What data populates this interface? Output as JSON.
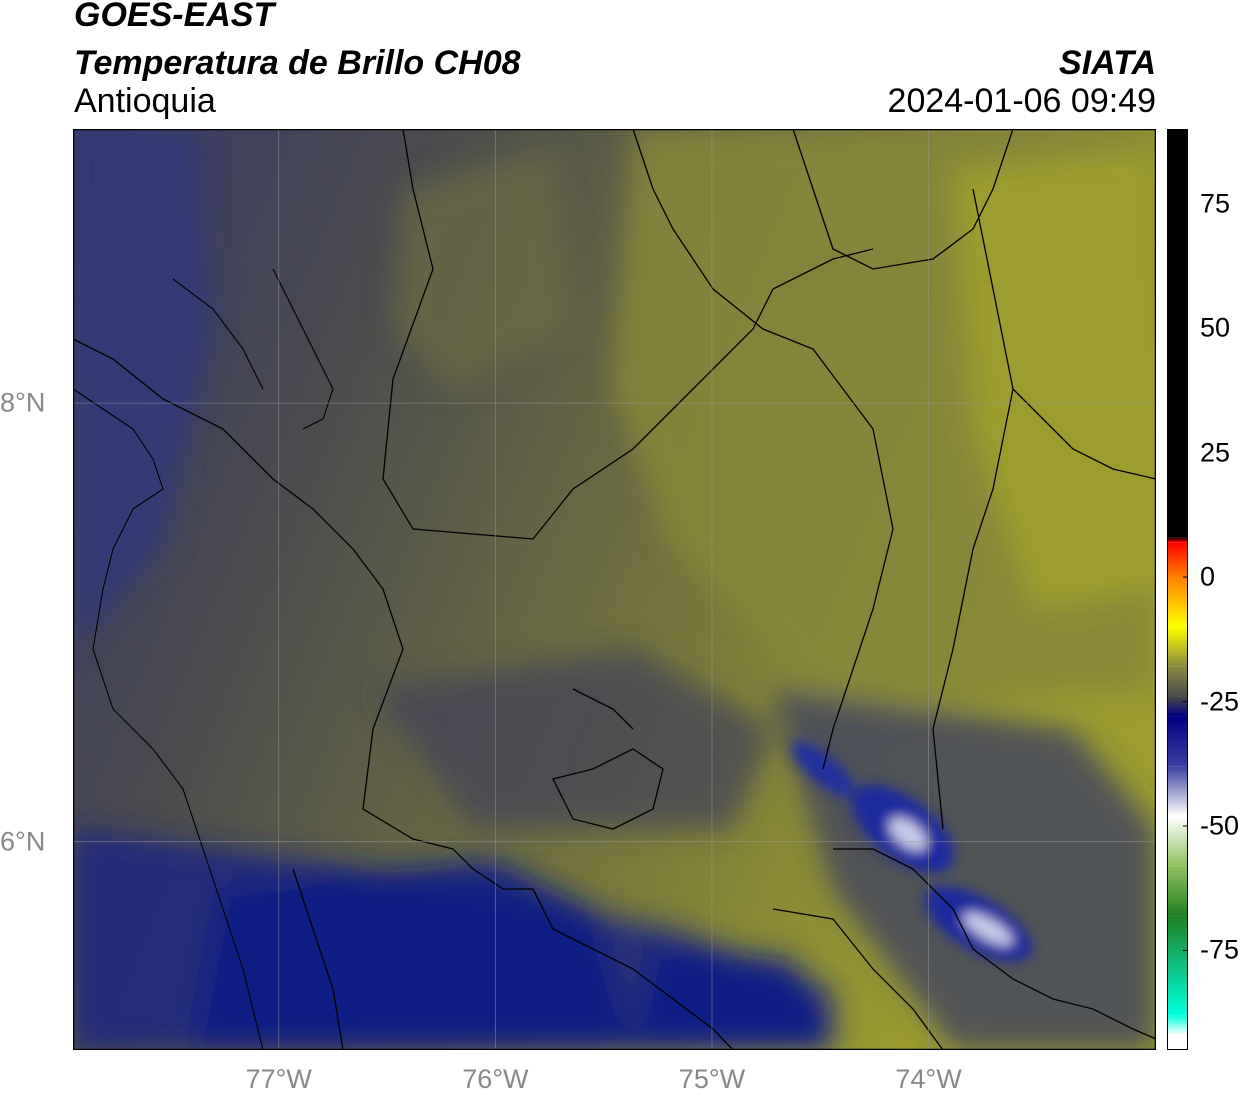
{
  "header": {
    "title_line1": "GOES-EAST",
    "title_line2": "Temperatura de Brillo CH08",
    "region": "Antioquia",
    "organization": "SIATA",
    "datetime": "2024-01-06 09:49"
  },
  "map": {
    "lon_range": [
      -77.95,
      -72.95
    ],
    "lat_range": [
      5.05,
      9.25
    ],
    "lon_ticks": [
      {
        "value": -77,
        "label": "77°W"
      },
      {
        "value": -76,
        "label": "76°W"
      },
      {
        "value": -75,
        "label": "75°W"
      },
      {
        "value": -74,
        "label": "74°W"
      }
    ],
    "lat_ticks": [
      {
        "value": 8,
        "label": "8°N"
      },
      {
        "value": 6,
        "label": "6°N"
      }
    ],
    "colors": {
      "cold_blue": "#1c2b7a",
      "mid_gray": "#4e4e52",
      "warm_olive": "#8a8a35",
      "bright_yellow": "#a6a62e",
      "border_line": "#000000",
      "grid_line": "#9a9a9a"
    }
  },
  "colorbar": {
    "range": [
      -95,
      90
    ],
    "ticks": [
      {
        "value": 75,
        "label": "75"
      },
      {
        "value": 50,
        "label": "50"
      },
      {
        "value": 25,
        "label": "25"
      },
      {
        "value": 0,
        "label": "0"
      },
      {
        "value": -25,
        "label": "-25"
      },
      {
        "value": -50,
        "label": "-50"
      },
      {
        "value": -75,
        "label": "-75"
      }
    ],
    "stops": [
      {
        "value": 90,
        "color": "#000000"
      },
      {
        "value": 8,
        "color": "#000000"
      },
      {
        "value": 7,
        "color": "#ff0000"
      },
      {
        "value": 0,
        "color": "#ff8000"
      },
      {
        "value": -10,
        "color": "#ffff00"
      },
      {
        "value": -18,
        "color": "#8a8a40"
      },
      {
        "value": -24,
        "color": "#4a4a4a"
      },
      {
        "value": -28,
        "color": "#000080"
      },
      {
        "value": -38,
        "color": "#3a40a0"
      },
      {
        "value": -48,
        "color": "#ffffff"
      },
      {
        "value": -58,
        "color": "#90c060"
      },
      {
        "value": -68,
        "color": "#208020"
      },
      {
        "value": -88,
        "color": "#00ffe0"
      },
      {
        "value": -92,
        "color": "#ffffff"
      }
    ]
  }
}
